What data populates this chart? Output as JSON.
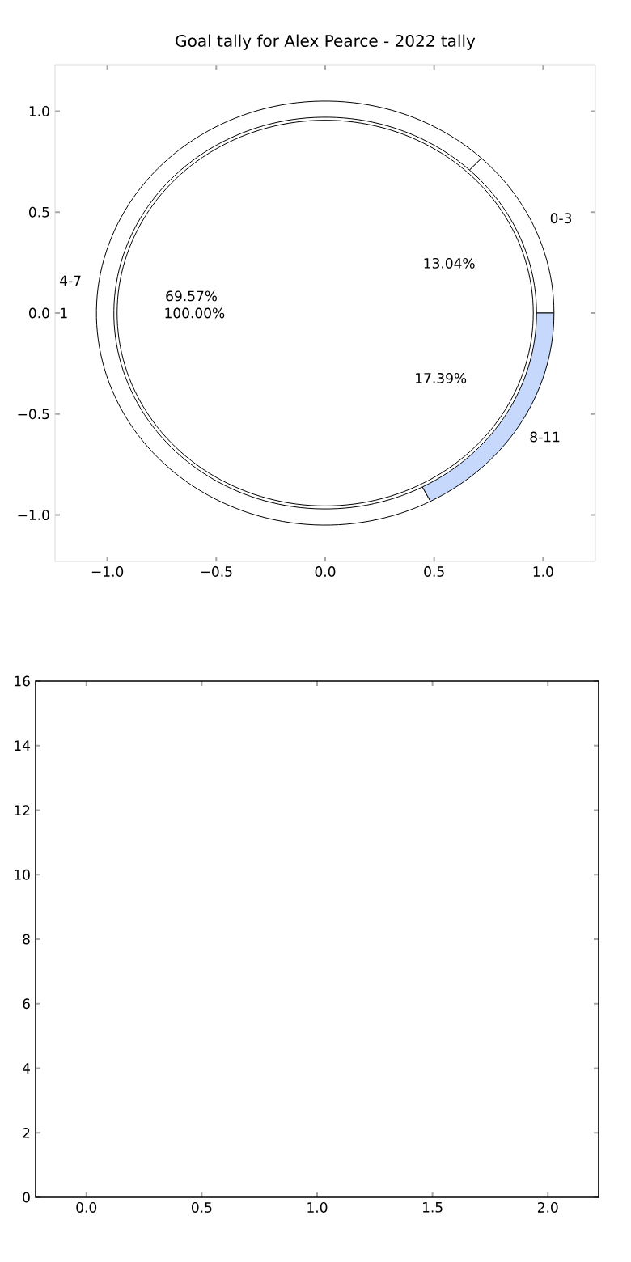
{
  "chart_data": [
    {
      "type": "scatter",
      "title": "Goal tally for Alex Pearce - 2022 tally",
      "xlim": [
        -1.24,
        1.24
      ],
      "ylim": [
        -1.23,
        1.23
      ],
      "xticks": [
        {
          "value": -1,
          "label": "−1.0"
        },
        {
          "value": -0.5,
          "label": "−0.5"
        },
        {
          "value": 0,
          "label": "0.0"
        },
        {
          "value": 0.5,
          "label": "0.5"
        },
        {
          "value": 1,
          "label": "1.0"
        }
      ],
      "yticks": [
        {
          "value": -1,
          "label": "−1.0"
        },
        {
          "value": -0.5,
          "label": "−0.5"
        },
        {
          "value": 0,
          "label": "0.0"
        },
        {
          "value": 0.5,
          "label": "0.5"
        },
        {
          "value": 1,
          "label": "1.0"
        }
      ]
    },
    {
      "type": "donut",
      "categories": [
        "0-3",
        "4-7",
        "8-11"
      ],
      "values": [
        13.04,
        69.57,
        17.39
      ],
      "colors": [
        "#ffffff",
        "#ffffff",
        "#c6d9fd"
      ],
      "value_labels": [
        "13.04%",
        "69.57%",
        "17.39%"
      ]
    },
    {
      "type": "pie",
      "categories": [
        "1"
      ],
      "values": [
        100
      ],
      "colors": [
        "#ffffff"
      ],
      "value_labels": [
        "100.00%"
      ]
    },
    {
      "type": "scatter",
      "xlim": [
        -0.22,
        2.22
      ],
      "ylim": [
        0,
        16
      ],
      "xticks": [
        {
          "value": 0,
          "label": "0.0"
        },
        {
          "value": 0.5,
          "label": "0.5"
        },
        {
          "value": 1,
          "label": "1.0"
        },
        {
          "value": 1.5,
          "label": "1.5"
        },
        {
          "value": 2,
          "label": "2.0"
        }
      ],
      "yticks": [
        0,
        2,
        4,
        6,
        8,
        10,
        12,
        14,
        16
      ]
    }
  ]
}
